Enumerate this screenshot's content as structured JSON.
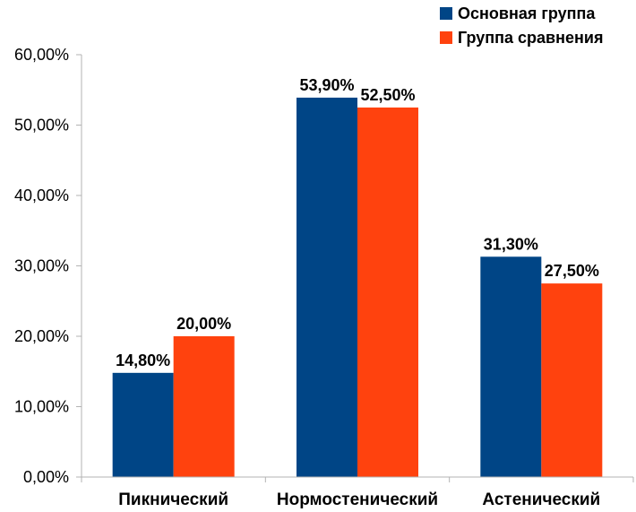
{
  "chart_data": {
    "type": "bar",
    "title": "",
    "xlabel": "",
    "ylabel": "",
    "categories": [
      "Пикнический",
      "Нормостенический",
      "Астенический"
    ],
    "series": [
      {
        "name": "Основная группа",
        "color": "#004586",
        "values": [
          14.8,
          53.9,
          31.3
        ],
        "labels": [
          "14,80%",
          "53,90%",
          "31,30%"
        ]
      },
      {
        "name": "Группа сравнения",
        "color": "#ff420e",
        "values": [
          20.0,
          52.5,
          27.5
        ],
        "labels": [
          "20,00%",
          "52,50%",
          "27,50%"
        ]
      }
    ],
    "ylim": [
      0,
      60
    ],
    "yticks": [
      0,
      10,
      20,
      30,
      40,
      50,
      60
    ],
    "ytick_labels": [
      "0,00%",
      "10,00%",
      "20,00%",
      "30,00%",
      "40,00%",
      "50,00%",
      "60,00%"
    ],
    "grid": false,
    "legend_position": "top-right"
  }
}
